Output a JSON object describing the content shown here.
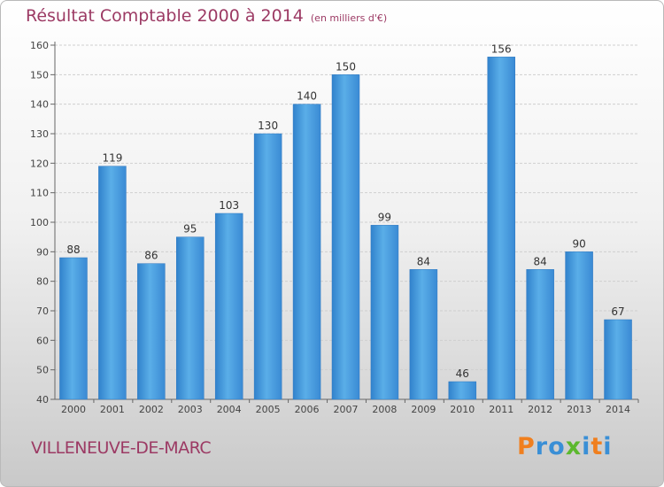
{
  "chart_data": {
    "type": "bar",
    "title": "Résultat Comptable 2000 à 2014",
    "subtitle": "(en milliers d'€)",
    "categories": [
      "2000",
      "2001",
      "2002",
      "2003",
      "2004",
      "2005",
      "2006",
      "2007",
      "2008",
      "2009",
      "2010",
      "2011",
      "2012",
      "2013",
      "2014"
    ],
    "values": [
      88,
      119,
      86,
      95,
      103,
      130,
      140,
      150,
      99,
      84,
      46,
      156,
      84,
      90,
      67
    ],
    "ylim": [
      40,
      160
    ],
    "yticks": [
      40,
      50,
      60,
      70,
      80,
      90,
      100,
      110,
      120,
      130,
      140,
      150,
      160
    ],
    "grid": true,
    "bar_color": "#3a8fd6"
  },
  "footer": {
    "city": "VILLENEUVE-DE-MARC",
    "logo": {
      "letters": [
        "P",
        "r",
        "o",
        "x",
        "i",
        "t",
        "i"
      ],
      "colors": [
        "#f07f1e",
        "#3a8fd6",
        "#3a8fd6",
        "#5cb82e",
        "#3a8fd6",
        "#f07f1e",
        "#3a8fd6"
      ]
    }
  }
}
